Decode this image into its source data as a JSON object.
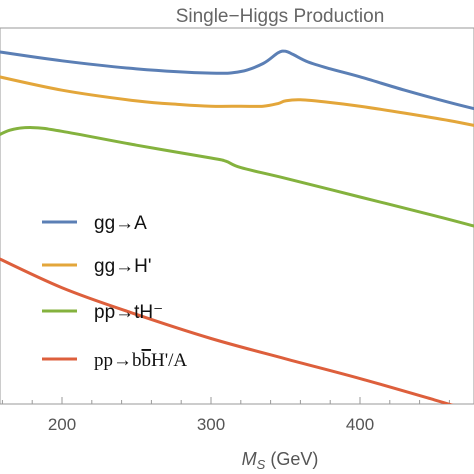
{
  "chart_data": {
    "type": "line",
    "title": "Single−Higgs Production",
    "xlabel": "M",
    "xlabel_sub": "S",
    "xlabel_unit": " (GeV)",
    "xlim": [
      150,
      480
    ],
    "x_ticks": [
      200,
      300,
      400
    ],
    "x_tick_labels": [
      "200",
      "300",
      "400"
    ],
    "legend_position": "center-left",
    "series": [
      {
        "name": "gg→A",
        "color": "#5b7fb5",
        "x": [
          150,
          200,
          250,
          300,
          320,
          335,
          345,
          350,
          355,
          365,
          380,
          400,
          430,
          460,
          480
        ],
        "y": [
          7.9,
          7.7,
          7.55,
          7.47,
          7.5,
          7.65,
          7.85,
          7.88,
          7.82,
          7.68,
          7.55,
          7.4,
          7.15,
          6.92,
          6.78
        ]
      },
      {
        "name": "gg→H'",
        "color": "#e3a63a",
        "x": [
          150,
          200,
          250,
          280,
          300,
          320,
          335,
          345,
          350,
          360,
          380,
          400,
          430,
          460,
          480
        ],
        "y": [
          7.45,
          7.15,
          6.95,
          6.88,
          6.85,
          6.85,
          6.85,
          6.9,
          6.95,
          6.97,
          6.92,
          6.85,
          6.72,
          6.58,
          6.47
        ]
      },
      {
        "name": "pp→tH⁻",
        "color": "#84b23e",
        "x": [
          150,
          165,
          180,
          200,
          250,
          300,
          310,
          320,
          350,
          400,
          450,
          480
        ],
        "y": [
          6.2,
          6.4,
          6.45,
          6.38,
          6.12,
          5.88,
          5.82,
          5.7,
          5.5,
          5.15,
          4.8,
          4.58
        ]
      },
      {
        "name": "pp→b̅b̅H'/A",
        "label_main": "pp→b",
        "label_bar": "b",
        "label_tail": "H'/A",
        "color": "#dd5f3c",
        "x": [
          150,
          200,
          250,
          300,
          350,
          400,
          450,
          480
        ],
        "y": [
          4.1,
          3.45,
          2.95,
          2.5,
          2.12,
          1.75,
          1.35,
          1.1
        ]
      }
    ]
  }
}
